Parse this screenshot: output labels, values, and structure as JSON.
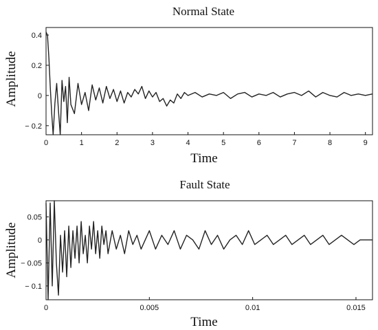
{
  "chart_data": [
    {
      "type": "line",
      "title": "Normal State",
      "xlabel": "Time",
      "ylabel": "Amplitude",
      "xlim": [
        0,
        9.2
      ],
      "ylim": [
        -0.26,
        0.45
      ],
      "xticks": [
        0,
        1,
        2,
        3,
        4,
        5,
        6,
        7,
        8,
        9
      ],
      "xtick_labels": [
        "0",
        "1",
        "2",
        "3",
        "4",
        "5",
        "6",
        "7",
        "8",
        "9"
      ],
      "yticks": [
        0.4,
        0.2,
        0,
        -0.2
      ],
      "ytick_labels": [
        "0.4",
        "0.2",
        "0",
        "− 0.2"
      ],
      "grid": false,
      "series": [
        {
          "x": [
            0,
            0.04,
            0.08,
            0.12,
            0.16,
            0.2,
            0.25,
            0.3,
            0.35,
            0.4,
            0.45,
            0.5,
            0.55,
            0.6,
            0.65,
            0.7,
            0.8,
            0.9,
            1.0,
            1.1,
            1.2,
            1.3,
            1.4,
            1.5,
            1.6,
            1.7,
            1.8,
            1.9,
            2.0,
            2.1,
            2.2,
            2.3,
            2.4,
            2.5,
            2.6,
            2.7,
            2.8,
            2.9,
            3.0,
            3.1,
            3.2,
            3.3,
            3.4,
            3.5,
            3.6,
            3.7,
            3.8,
            3.9,
            4.0,
            4.2,
            4.4,
            4.6,
            4.8,
            5.0,
            5.2,
            5.4,
            5.6,
            5.8,
            6.0,
            6.2,
            6.4,
            6.6,
            6.8,
            7.0,
            7.2,
            7.4,
            7.6,
            7.8,
            8.0,
            8.2,
            8.4,
            8.6,
            8.8,
            9.0,
            9.2
          ],
          "y": [
            0.42,
            0.4,
            0.25,
            0.05,
            -0.12,
            -0.32,
            -0.05,
            0.08,
            -0.1,
            -0.38,
            0.1,
            -0.04,
            0.06,
            -0.18,
            0.12,
            -0.06,
            -0.12,
            0.08,
            -0.06,
            0.02,
            -0.1,
            0.07,
            -0.03,
            0.05,
            -0.05,
            0.06,
            -0.02,
            0.04,
            -0.04,
            0.03,
            -0.05,
            0.02,
            -0.01,
            0.04,
            0.01,
            0.06,
            -0.02,
            0.03,
            -0.01,
            0.02,
            -0.04,
            -0.02,
            -0.07,
            -0.03,
            -0.05,
            0.01,
            -0.02,
            0.02,
            0.0,
            0.02,
            -0.01,
            0.01,
            0.0,
            0.02,
            -0.02,
            0.01,
            0.02,
            -0.01,
            0.01,
            0.0,
            0.02,
            -0.01,
            0.01,
            0.02,
            0.0,
            0.03,
            -0.01,
            0.02,
            0.0,
            -0.01,
            0.02,
            0.0,
            0.01,
            0.0,
            0.01
          ]
        }
      ]
    },
    {
      "type": "line",
      "title": "Fault State",
      "xlabel": "Time",
      "ylabel": "Amplitude",
      "xlim": [
        0,
        0.0158
      ],
      "ylim": [
        -0.13,
        0.085
      ],
      "xticks": [
        0,
        0.005,
        0.01,
        0.015
      ],
      "xtick_labels": [
        "0",
        "0.005",
        "0.01",
        "0.015"
      ],
      "yticks": [
        0.05,
        0,
        -0.05,
        -0.1
      ],
      "ytick_labels": [
        "0.05",
        "0",
        "− 0.05",
        "− 0.1"
      ],
      "grid": false,
      "series": [
        {
          "x": [
            0,
            0.0001,
            0.0002,
            0.0003,
            0.0004,
            0.0005,
            0.0006,
            0.0007,
            0.0008,
            0.0009,
            0.001,
            0.0011,
            0.0012,
            0.0013,
            0.0014,
            0.0015,
            0.0016,
            0.0017,
            0.0018,
            0.0019,
            0.002,
            0.0021,
            0.0022,
            0.0023,
            0.0024,
            0.0025,
            0.0026,
            0.0027,
            0.0028,
            0.0029,
            0.003,
            0.0032,
            0.0034,
            0.0036,
            0.0038,
            0.004,
            0.0042,
            0.0044,
            0.0046,
            0.0048,
            0.005,
            0.0053,
            0.0056,
            0.0059,
            0.0062,
            0.0065,
            0.0068,
            0.0071,
            0.0074,
            0.0077,
            0.008,
            0.0083,
            0.0086,
            0.0089,
            0.0092,
            0.0095,
            0.0098,
            0.0101,
            0.0104,
            0.0107,
            0.011,
            0.0113,
            0.0116,
            0.0119,
            0.0122,
            0.0125,
            0.0128,
            0.0131,
            0.0134,
            0.0137,
            0.014,
            0.0143,
            0.0146,
            0.0149,
            0.0152,
            0.0155,
            0.0158
          ],
          "y": [
            0.08,
            -0.13,
            0.08,
            -0.1,
            0.085,
            -0.05,
            -0.12,
            0.01,
            -0.07,
            0.02,
            -0.08,
            0.03,
            -0.06,
            0.02,
            -0.04,
            0.03,
            -0.05,
            0.04,
            -0.03,
            0.01,
            -0.05,
            0.03,
            -0.02,
            0.04,
            -0.03,
            0.02,
            -0.04,
            0.03,
            -0.01,
            0.02,
            -0.03,
            0.02,
            -0.02,
            0.01,
            -0.03,
            0.02,
            -0.01,
            0.01,
            -0.02,
            0.0,
            0.02,
            -0.02,
            0.01,
            -0.01,
            0.02,
            -0.02,
            0.01,
            0.0,
            -0.02,
            0.02,
            -0.01,
            0.01,
            -0.02,
            0.0,
            0.01,
            -0.01,
            0.02,
            -0.01,
            0.0,
            0.01,
            -0.01,
            0.0,
            0.01,
            -0.01,
            0.0,
            0.01,
            -0.01,
            0.0,
            0.01,
            -0.01,
            0.0,
            0.01,
            0.0,
            -0.01,
            0.0,
            0.0,
            0.0
          ]
        }
      ]
    }
  ]
}
